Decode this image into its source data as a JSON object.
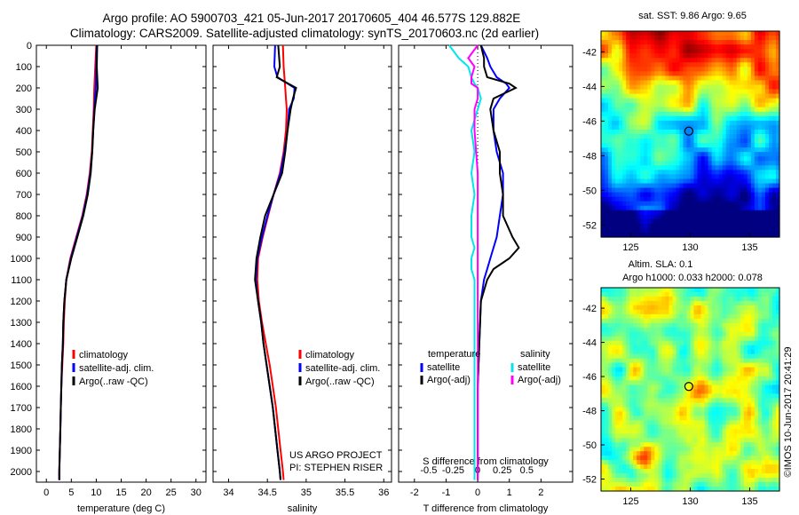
{
  "header": {
    "line1": "Argo profile: AO 5900703_421 05-Jun-2017 20170605_404 46.577S 129.882E",
    "line2": "Climatology: CARS2009. Satellite-adjusted climatology: synTS_20170603.nc (2d earlier)"
  },
  "depth_ticks": [
    "0",
    "100",
    "200",
    "300",
    "400",
    "500",
    "600",
    "700",
    "800",
    "900",
    "1000",
    "1100",
    "1200",
    "1300",
    "1400",
    "1500",
    "1600",
    "1700",
    "1800",
    "1900",
    "2000"
  ],
  "colors": {
    "climatology": "#ff0000",
    "satellite": "#0000ff",
    "argo": "#000000",
    "sat_salinity": "#00e5ee",
    "argo_salinity": "#ff00ff"
  },
  "credits": {
    "project": "US ARGO PROJECT",
    "pi": "PI: STEPHEN RISER"
  },
  "footer": "©IMOS 10-Jun-2017 20:41:29",
  "chart_data": [
    {
      "type": "line",
      "xlabel": "temperature (deg C)",
      "xlim": [
        -2,
        32
      ],
      "ylim": [
        2050,
        0
      ],
      "xticks": [
        "0",
        "5",
        "10",
        "15",
        "20",
        "25",
        "30"
      ],
      "legend": [
        "climatology",
        "satellite-adj. clim.",
        "Argo(..raw -QC)"
      ],
      "depth": [
        0,
        100,
        200,
        300,
        400,
        500,
        600,
        700,
        800,
        900,
        1000,
        1100,
        1200,
        1300,
        1400,
        1500,
        1600,
        1700,
        1800,
        1900,
        2000,
        2040
      ],
      "series": [
        {
          "name": "climatology",
          "values": [
            10.0,
            9.8,
            9.6,
            9.5,
            9.3,
            9.1,
            8.7,
            8.1,
            7.2,
            6.0,
            4.8,
            4.0,
            3.7,
            3.5,
            3.4,
            3.2,
            3.0,
            2.9,
            2.8,
            2.7,
            2.6,
            2.6
          ]
        },
        {
          "name": "satellite-adj. clim.",
          "values": [
            10.1,
            10.0,
            9.9,
            9.6,
            9.4,
            9.2,
            8.8,
            8.2,
            7.3,
            6.1,
            4.9,
            4.0,
            3.6,
            3.4,
            3.3,
            3.1,
            3.0,
            2.9,
            2.8,
            2.7,
            2.6,
            2.6
          ]
        },
        {
          "name": "Argo(..raw -QC)",
          "values": [
            10.2,
            10.1,
            10.3,
            9.7,
            9.4,
            9.2,
            8.9,
            8.3,
            7.4,
            6.2,
            5.0,
            4.0,
            3.6,
            3.4,
            3.3,
            3.1,
            3.0,
            2.9,
            2.8,
            2.7,
            2.6,
            2.6
          ]
        }
      ]
    },
    {
      "type": "line",
      "xlabel": "salinity",
      "xlim": [
        33.8,
        36.1
      ],
      "ylim": [
        2050,
        0
      ],
      "xticks": [
        "34",
        "34.5",
        "35",
        "35.5",
        "36"
      ],
      "legend": [
        "climatology",
        "satellite-adj. clim.",
        "Argo(..raw -QC)"
      ],
      "credits": [
        "US ARGO PROJECT",
        "PI: STEPHEN RISER"
      ],
      "depth": [
        0,
        100,
        150,
        200,
        250,
        300,
        400,
        500,
        600,
        700,
        800,
        900,
        1000,
        1100,
        1200,
        1300,
        1400,
        1500,
        1600,
        1700,
        1800,
        1900,
        2000,
        2040
      ],
      "series": [
        {
          "name": "climatology",
          "values": [
            34.7,
            34.71,
            34.72,
            34.73,
            34.74,
            34.75,
            34.74,
            34.71,
            34.66,
            34.58,
            34.51,
            34.44,
            34.38,
            34.37,
            34.39,
            34.43,
            34.48,
            34.53,
            34.57,
            34.61,
            34.64,
            34.67,
            34.7,
            34.71
          ]
        },
        {
          "name": "satellite-adj. clim.",
          "values": [
            34.6,
            34.59,
            34.63,
            34.85,
            34.84,
            34.78,
            34.76,
            34.72,
            34.67,
            34.58,
            34.5,
            34.43,
            34.37,
            34.35,
            34.38,
            34.42,
            34.45,
            34.49,
            34.53,
            34.57,
            34.6,
            34.63,
            34.66,
            34.67
          ]
        },
        {
          "name": "Argo(..raw -QC)",
          "values": [
            34.64,
            34.66,
            34.62,
            34.87,
            34.83,
            34.8,
            34.76,
            34.73,
            34.69,
            34.58,
            34.47,
            34.41,
            34.36,
            34.34,
            34.38,
            34.42,
            34.45,
            34.49,
            34.53,
            34.57,
            34.6,
            34.63,
            34.66,
            34.67
          ]
        }
      ]
    },
    {
      "type": "line",
      "xlabel": "T difference from climatology",
      "x2label": "S difference from climatology",
      "xlim": [
        -2.5,
        3.0
      ],
      "ylim": [
        2050,
        0
      ],
      "xticks": [
        "-2",
        "-1",
        "0",
        "1",
        "2"
      ],
      "x2ticks": [
        "-0.5",
        "-0.25",
        "0",
        "0.25",
        "0.5"
      ],
      "legend_headers": [
        "temperature",
        "salinity"
      ],
      "legend": [
        "satellite",
        "Argo(-adj)",
        "satellite",
        "Argo(-adj)"
      ],
      "depth": [
        0,
        60,
        100,
        150,
        180,
        200,
        250,
        300,
        400,
        500,
        600,
        700,
        800,
        900,
        950,
        1000,
        1050,
        1100,
        1200,
        1400,
        1600,
        1800,
        2000,
        2040
      ],
      "series": [
        {
          "name": "satellite",
          "values": [
            0.1,
            0.3,
            0.4,
            0.6,
            0.9,
            1.0,
            0.7,
            0.5,
            0.5,
            0.6,
            0.8,
            0.8,
            0.7,
            0.6,
            0.5,
            0.4,
            0.3,
            0.2,
            0.1,
            0.05,
            0.0,
            0.0,
            0.0,
            0.0
          ]
        },
        {
          "name": "Argo(-adj)",
          "values": [
            0.1,
            0.2,
            0.2,
            0.3,
            1.0,
            1.2,
            0.5,
            0.4,
            0.5,
            0.7,
            0.7,
            0.8,
            0.8,
            1.1,
            1.3,
            1.0,
            0.5,
            0.3,
            0.1,
            0.05,
            0.0,
            0.0,
            0.0,
            0.0
          ]
        },
        {
          "name": "satellite",
          "values": [
            -0.9,
            -0.6,
            -0.3,
            -0.2,
            -0.1,
            0.0,
            0.1,
            0.0,
            -0.2,
            -0.1,
            -0.2,
            -0.1,
            -0.2,
            -0.2,
            -0.1,
            -0.2,
            -0.2,
            -0.1,
            -0.1,
            -0.1,
            -0.1,
            -0.1,
            -0.1,
            -0.1
          ]
        },
        {
          "name": "Argo(-adj)",
          "values": [
            0.0,
            -0.3,
            -0.1,
            -0.2,
            -0.2,
            0.0,
            0.0,
            -0.1,
            -0.1,
            -0.05,
            0.0,
            0.0,
            0.0,
            0.0,
            0.0,
            0.0,
            0.0,
            0.0,
            0.0,
            0.0,
            0.0,
            0.0,
            0.0,
            0.0
          ]
        }
      ]
    },
    {
      "type": "heatmap",
      "title": "sat. SST: 9.86  Argo: 9.65",
      "xlim": [
        122.5,
        137.5
      ],
      "ylim": [
        -52.7,
        -40.8
      ],
      "xticks": [
        "125",
        "130",
        "135"
      ],
      "yticks": [
        "-42",
        "-44",
        "-46",
        "-48",
        "-50",
        "-52"
      ],
      "marker": {
        "lon": 129.88,
        "lat": -46.58
      }
    },
    {
      "type": "heatmap",
      "title": "Altim. SLA: 0.1",
      "subtitle": "Argo h1000: 0.033 h2000: 0.078",
      "xlim": [
        122.5,
        137.5
      ],
      "ylim": [
        -52.7,
        -40.8
      ],
      "xticks": [
        "125",
        "130",
        "135"
      ],
      "yticks": [
        "-42",
        "-44",
        "-46",
        "-48",
        "-50",
        "-52"
      ],
      "marker": {
        "lon": 129.88,
        "lat": -46.58
      }
    }
  ]
}
